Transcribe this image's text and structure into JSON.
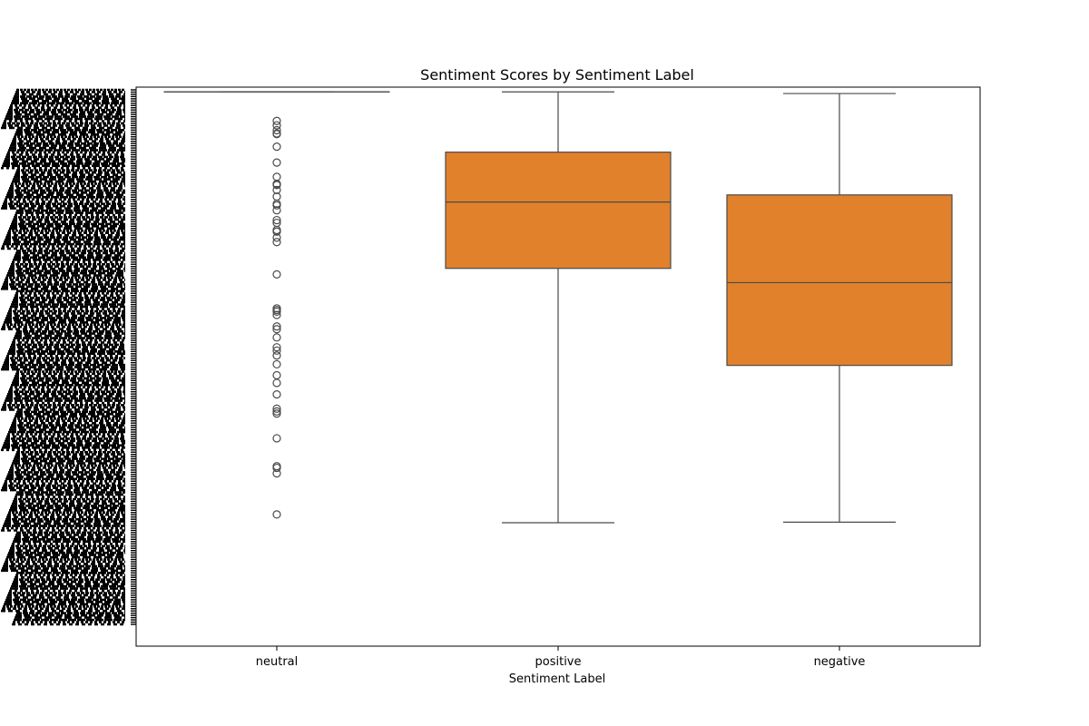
{
  "chart_data": {
    "type": "box",
    "title": "Sentiment Scores by Sentiment Label",
    "xlabel": "Sentiment Label",
    "ylabel": "",
    "categories": [
      "neutral",
      "positive",
      "negative"
    ],
    "y_tick_labels_note": "overlapping unreadable tick labels",
    "ylim": [
      0,
      100
    ],
    "box_color": "#e1812c",
    "line_color": "#4a4a4a",
    "boxes": [
      {
        "category": "neutral",
        "min": 99.3,
        "q1": 99.3,
        "median": 99.3,
        "q3": 99.3,
        "max": 99.3,
        "outliers": [
          94.0,
          93.2,
          92.3,
          91.6,
          91.7,
          89.3,
          86.4,
          83.8,
          82.5,
          82.5,
          82.3,
          81.4,
          80.2,
          78.9,
          78.6,
          77.7,
          75.9,
          75.4,
          74.1,
          73.8,
          72.7,
          71.9,
          66.0,
          59.8,
          59.5,
          59.2,
          58.6,
          56.5,
          56.0,
          54.5,
          52.7,
          52.1,
          51.2,
          49.6,
          47.6,
          46.2,
          44.1,
          41.5,
          41.0,
          40.6,
          36.1,
          31.0,
          30.7,
          29.7,
          22.2
        ]
      },
      {
        "category": "positive",
        "min": 20.7,
        "q1": 67.1,
        "median": 79.2,
        "q3": 88.3,
        "max": 99.3
      },
      {
        "category": "negative",
        "min": 20.8,
        "q1": 49.4,
        "median": 64.5,
        "q3": 80.5,
        "max": 99.0
      }
    ]
  }
}
